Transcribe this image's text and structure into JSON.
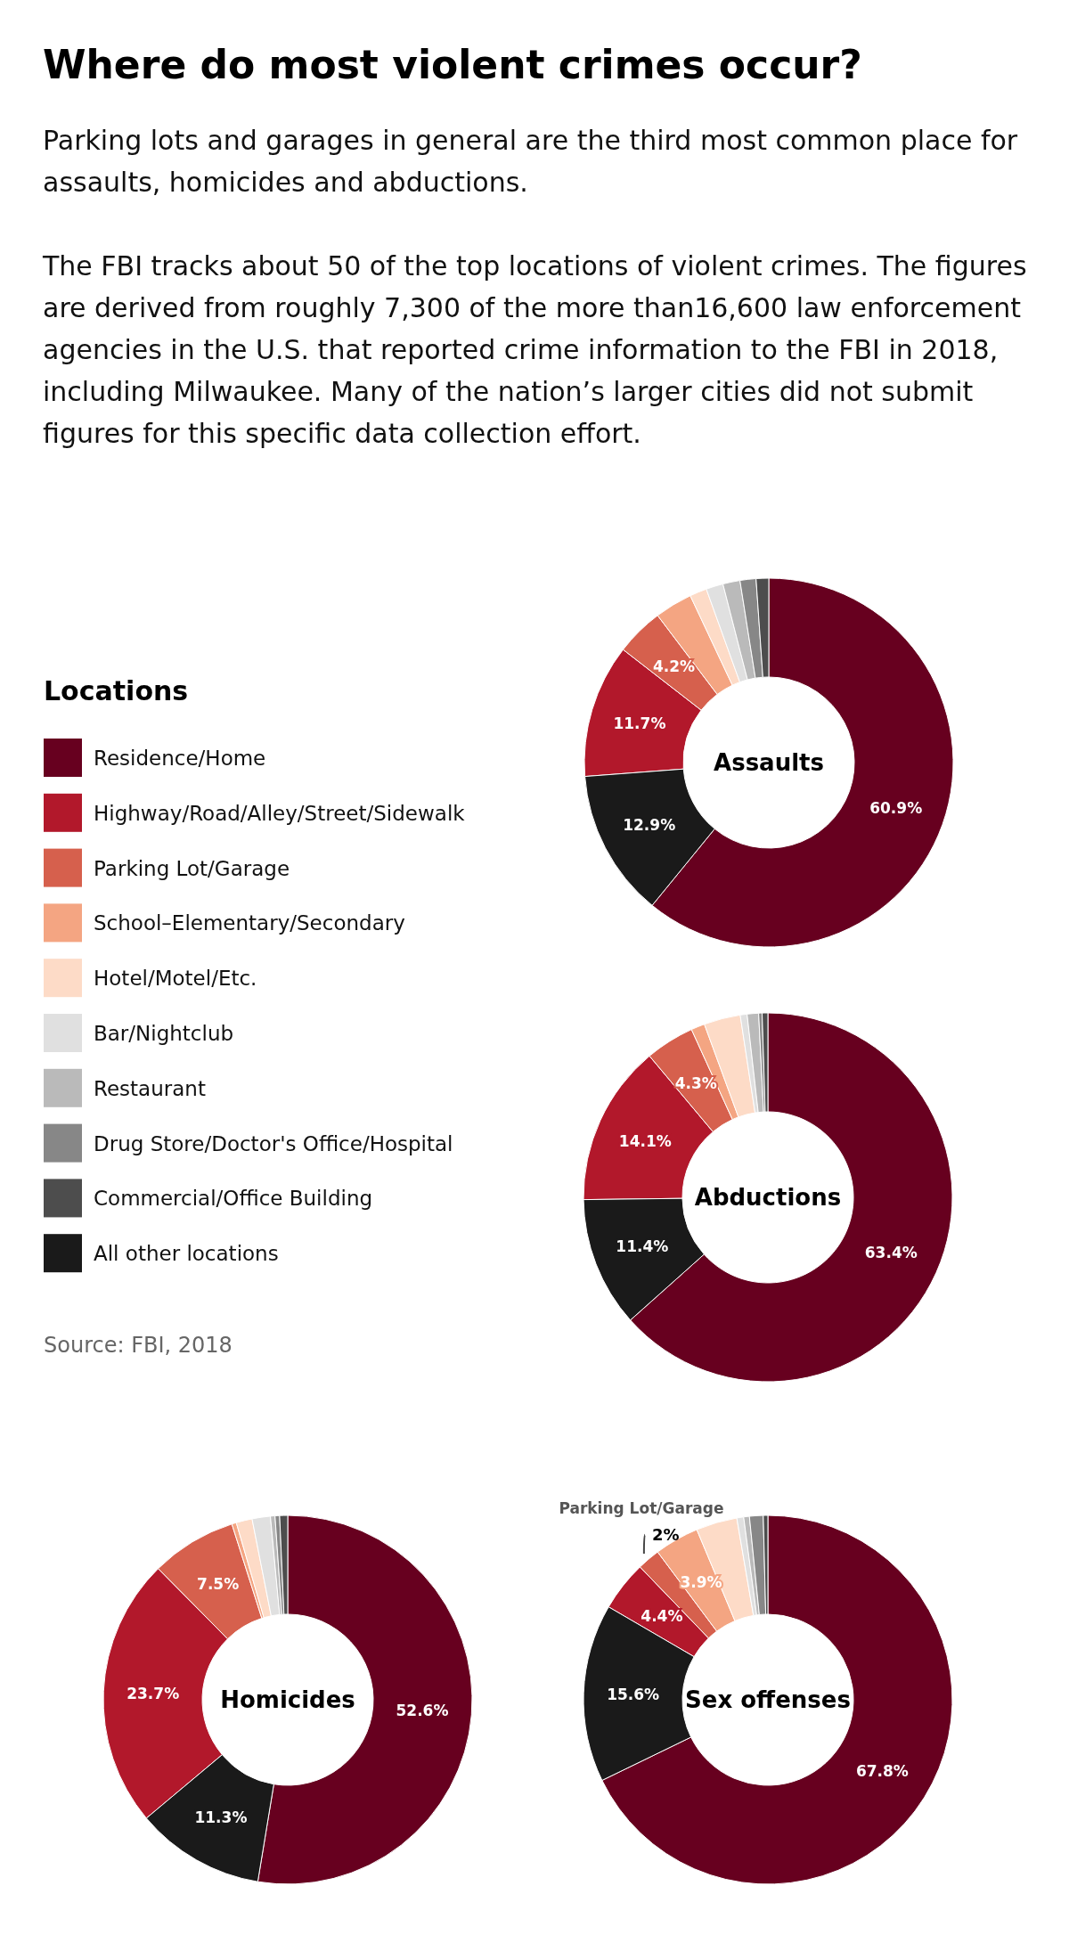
{
  "chart_data": [
    {
      "type": "other",
      "title": "Where do most violent crimes occur?",
      "subtitle": "Parking lots and garages in general are the third most common place for assaults, homicides and abductions.\nThe FBI tracks about 50 of the top locations of violent crimes.  The figures are derived from roughly 7,300 of the more than16,600 law enforcement agencies in the U.S. that reported crime information to the FBI in 2018, including Milwaukee. Many of the nation’s larger cities did not submit figures for this specific data collection effort.",
      "annotations": [
        "Source: FBI, 2018"
      ]
    },
    {
      "type": "donut",
      "title": "Assaults",
      "legend_title": "Locations",
      "legend": "left",
      "categories": [
        "Residence/Home",
        "Highway/Road/Alley/Street/Sidewalk",
        "Parking Lot/Garage",
        "School–Elementary/Secondary",
        "Hotel/Motel/Etc.",
        "Bar/Nightclub",
        "Restaurant",
        "Drug Store/Doctor's Office/Hospital",
        "Commercial/Office Building",
        "All other locations"
      ],
      "values": [
        60.9,
        11.7,
        4.2,
        3.3,
        1.5,
        1.5,
        1.5,
        1.4,
        1.1,
        12.9
      ],
      "colors": [
        "#67001f",
        "#b2182b",
        "#d6604d",
        "#f4a582",
        "#fddbc7",
        "#e0e0e0",
        "#bababa",
        "#878787",
        "#4d4d4d",
        "#1a1a1a"
      ],
      "value_labels": [
        "60.9%",
        "11.7%",
        "4.2%",
        null,
        null,
        null,
        null,
        null,
        null,
        "12.9%"
      ]
    },
    {
      "type": "donut",
      "title": "Abductions",
      "legend": false,
      "categories": [
        null,
        null,
        null,
        null,
        null,
        null,
        null,
        null,
        null,
        null
      ],
      "values": [
        63.4,
        14.1,
        4.3,
        1.2,
        3.2,
        0.6,
        1.0,
        0.3,
        0.5,
        11.4
      ],
      "colors": [
        "#67001f",
        "#b2182b",
        "#d6604d",
        "#f4a582",
        "#fddbc7",
        "#e0e0e0",
        "#bababa",
        "#878787",
        "#4d4d4d",
        "#1a1a1a"
      ],
      "value_labels": [
        "63.4%",
        "14.1%",
        "4.3%",
        null,
        null,
        null,
        null,
        null,
        null,
        "11.4%"
      ]
    },
    {
      "type": "donut",
      "title": "Homicides",
      "legend": false,
      "categories": [
        null,
        null,
        null,
        null,
        null,
        null,
        null,
        null,
        null,
        null
      ],
      "values": [
        52.6,
        23.7,
        7.5,
        0.4,
        1.4,
        1.6,
        0.4,
        0.4,
        0.7,
        11.3
      ],
      "colors": [
        "#67001f",
        "#b2182b",
        "#d6604d",
        "#f4a582",
        "#fddbc7",
        "#e0e0e0",
        "#bababa",
        "#878787",
        "#4d4d4d",
        "#1a1a1a"
      ],
      "value_labels": [
        "52.6%",
        "23.7%",
        "7.5%",
        null,
        null,
        null,
        null,
        null,
        null,
        "11.3%"
      ]
    },
    {
      "type": "donut",
      "title": "Sex offenses",
      "legend": false,
      "categories": [
        null,
        null,
        null,
        null,
        null,
        null,
        null,
        null,
        null,
        null
      ],
      "values": [
        67.8,
        4.4,
        2,
        3.9,
        3.6,
        0.6,
        0.5,
        1.2,
        0.4,
        15.6
      ],
      "colors": [
        "#67001f",
        "#b2182b",
        "#d6604d",
        "#f4a582",
        "#fddbc7",
        "#e0e0e0",
        "#bababa",
        "#878787",
        "#4d4d4d",
        "#1a1a1a"
      ],
      "value_labels": [
        "67.8%",
        "4.4%",
        "2%",
        "3.9%",
        null,
        null,
        null,
        null,
        null,
        "15.6%"
      ],
      "annotations": [
        "Parking Lot/Garage"
      ]
    }
  ]
}
